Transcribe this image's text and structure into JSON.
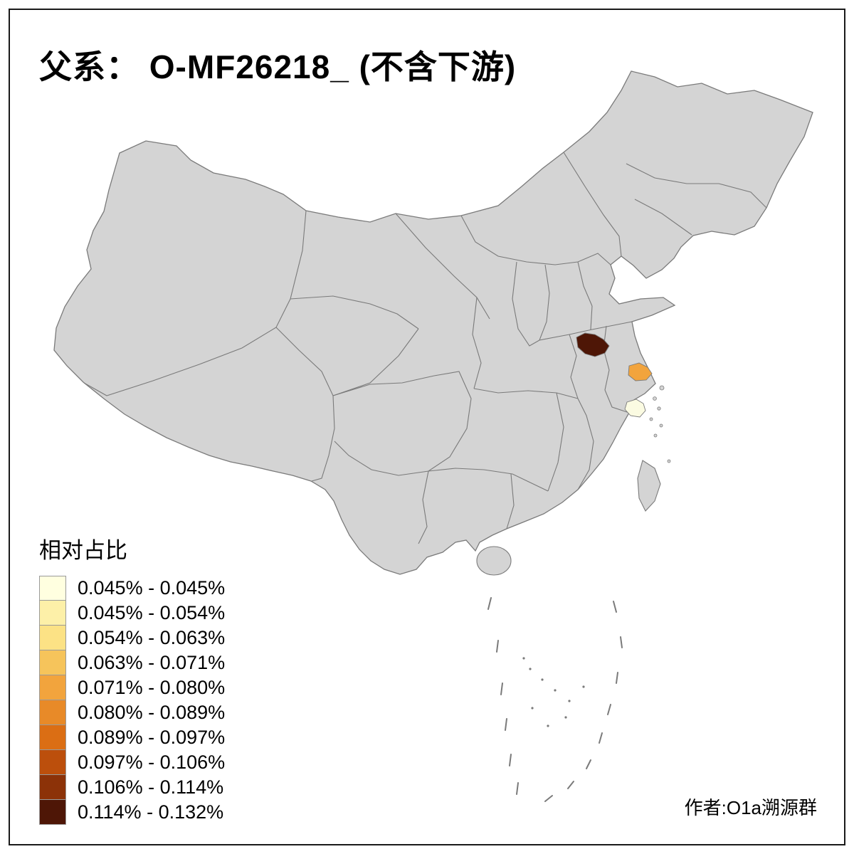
{
  "title": "父系： O-MF26218_ (不含下游)",
  "attribution": "作者:O1a溯源群",
  "legend": {
    "title": "相对占比",
    "items": [
      {
        "label": "0.045% - 0.045%",
        "color": "#FFFFE0"
      },
      {
        "label": "0.045% - 0.054%",
        "color": "#FDF0A8"
      },
      {
        "label": "0.054% - 0.063%",
        "color": "#FCE285"
      },
      {
        "label": "0.063% - 0.071%",
        "color": "#F6C45B"
      },
      {
        "label": "0.071% - 0.080%",
        "color": "#F2A43D"
      },
      {
        "label": "0.080% - 0.089%",
        "color": "#E88A28"
      },
      {
        "label": "0.089% - 0.097%",
        "color": "#DB6E14"
      },
      {
        "label": "0.097% - 0.106%",
        "color": "#BC4F0C"
      },
      {
        "label": "0.106% - 0.114%",
        "color": "#8C3208"
      },
      {
        "label": "0.114% - 0.132%",
        "color": "#4E1606"
      }
    ]
  },
  "map": {
    "land_color": "#D4D4D4",
    "border_color": "#7A7A7A",
    "sea_color": "#FFFFFF",
    "highlights": [
      {
        "name": "north-jiangsu-region",
        "color": "#4E1606"
      },
      {
        "name": "east-jiangsu-region",
        "color": "#F2A43D"
      },
      {
        "name": "north-zhejiang-region",
        "color": "#FBFBE2"
      }
    ]
  }
}
